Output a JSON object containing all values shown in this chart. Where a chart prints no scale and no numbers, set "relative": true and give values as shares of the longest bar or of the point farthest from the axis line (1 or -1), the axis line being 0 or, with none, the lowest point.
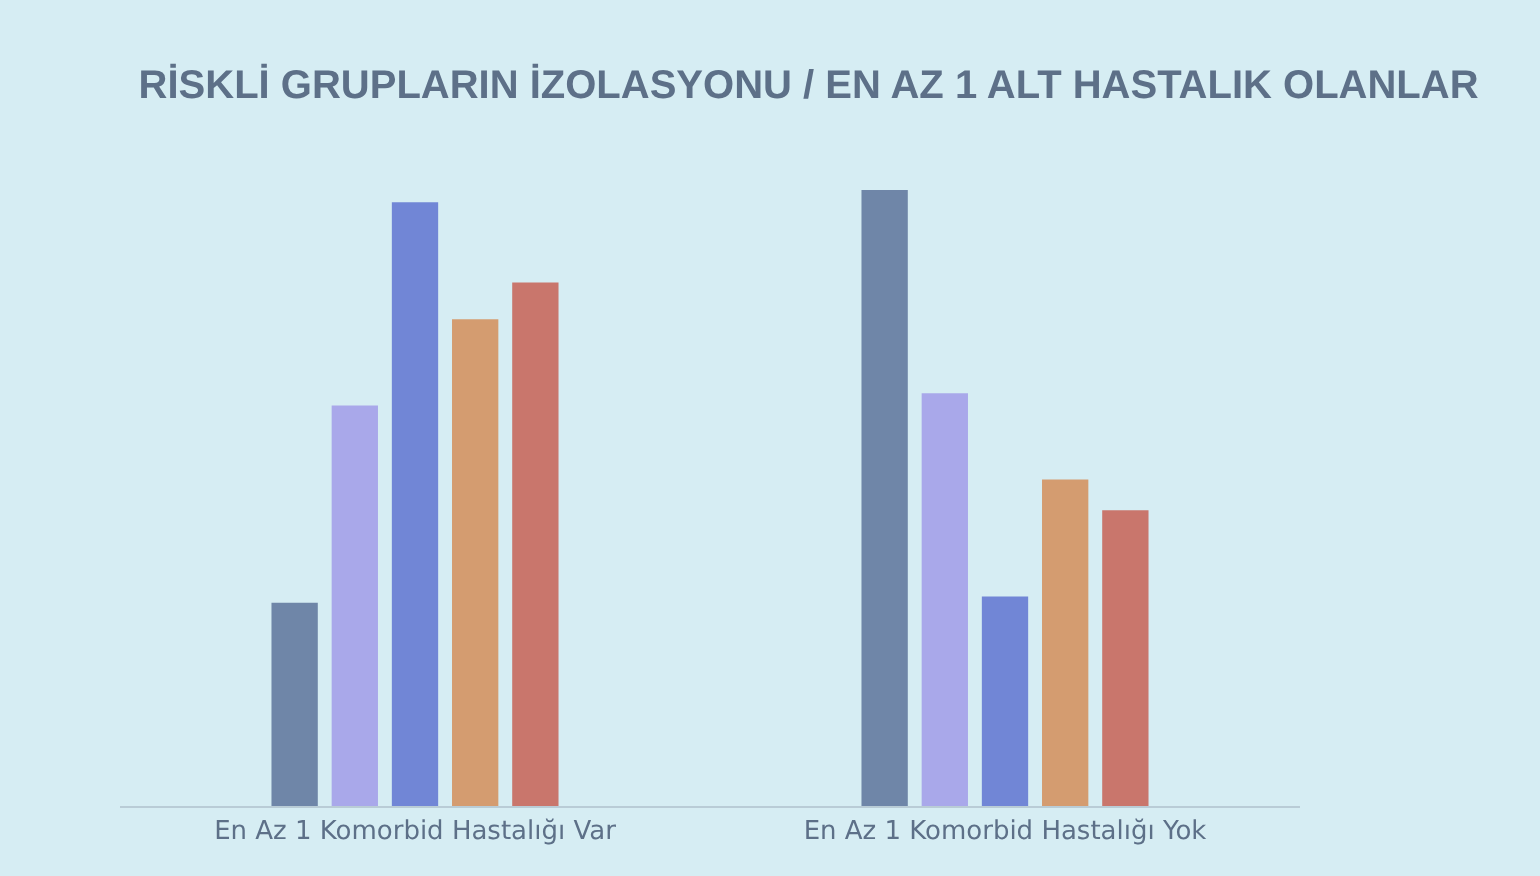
{
  "chart_data": {
    "type": "bar",
    "title": "RİSKLİ GRUPLARIN İZOLASYONU / EN AZ 1 ALT HASTALIK OLANLAR",
    "categories": [
      "En Az 1 Komorbid Hastalığı Var",
      "En Az 1 Komorbid Hastalığı Yok"
    ],
    "relative": true,
    "series": [
      {
        "color": "#6f86a8",
        "values": [
          0.33,
          1
        ]
      },
      {
        "color": "#a9a8ea",
        "values": [
          0.65,
          0.67
        ]
      },
      {
        "color": "#7186d6",
        "values": [
          0.98,
          0.34
        ]
      },
      {
        "color": "#d49c70",
        "values": [
          0.79,
          0.53
        ]
      },
      {
        "color": "#c9766c",
        "values": [
          0.85,
          0.48
        ]
      }
    ]
  }
}
